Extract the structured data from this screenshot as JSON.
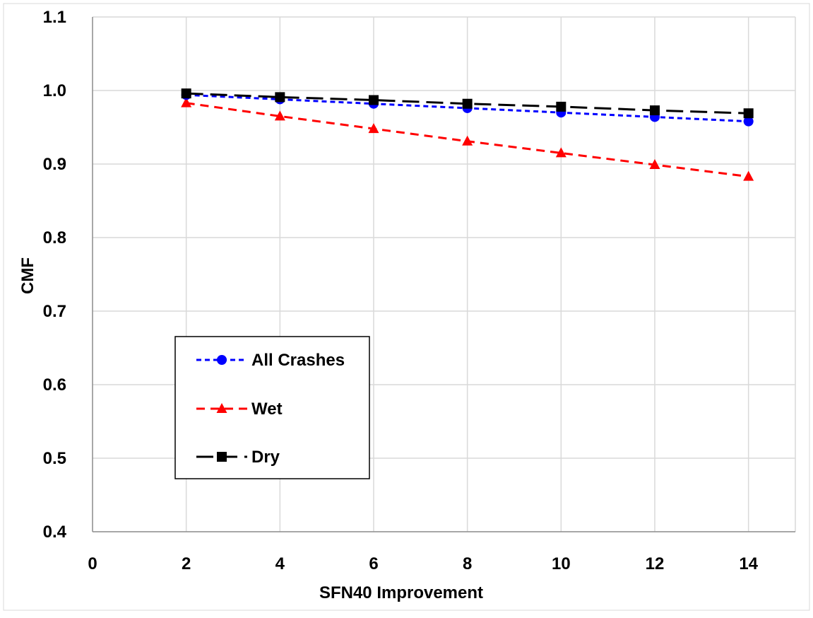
{
  "chart_data": {
    "type": "line",
    "title": "",
    "xlabel": "SFN40 Improvement",
    "ylabel": "CMF",
    "xlim": [
      0,
      15
    ],
    "ylim": [
      0.4,
      1.1
    ],
    "xticks": [
      "0",
      "2",
      "4",
      "6",
      "8",
      "10",
      "12",
      "14"
    ],
    "yticks": [
      "0.4",
      "0.5",
      "0.6",
      "0.7",
      "0.8",
      "0.9",
      "1.0",
      "1.1"
    ],
    "grid": true,
    "legend_position": "left-center",
    "x": [
      2,
      4,
      6,
      8,
      10,
      12,
      14
    ],
    "series": [
      {
        "name": "All Crashes",
        "values": [
          0.994,
          0.988,
          0.982,
          0.976,
          0.97,
          0.964,
          0.958
        ],
        "color": "#0000ff",
        "marker": "circle",
        "line_style": "dotted"
      },
      {
        "name": "Wet",
        "values": [
          0.983,
          0.965,
          0.948,
          0.931,
          0.915,
          0.899,
          0.883
        ],
        "color": "#ff0000",
        "marker": "triangle",
        "line_style": "dashed"
      },
      {
        "name": "Dry",
        "values": [
          0.996,
          0.991,
          0.987,
          0.982,
          0.978,
          0.973,
          0.969
        ],
        "color": "#000000",
        "marker": "square",
        "line_style": "long-dash"
      }
    ]
  }
}
